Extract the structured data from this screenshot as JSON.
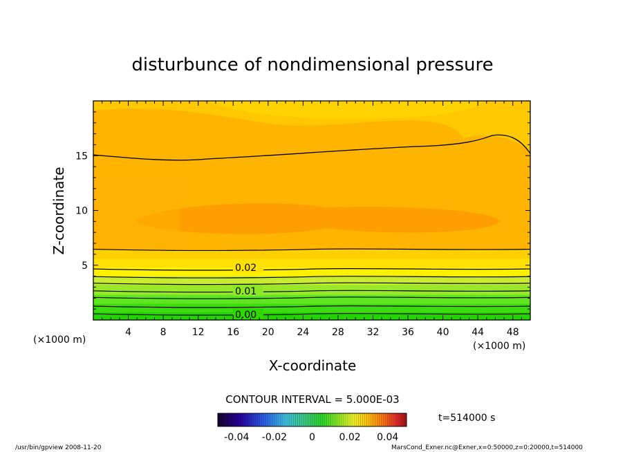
{
  "chart_data": {
    "type": "heatmap",
    "title": "disturbunce of nondimensional pressure",
    "xlabel": "X-coordinate",
    "ylabel": "Z-coordinate",
    "x_unit": "(×1000 m)",
    "y_unit": "(×1000 m)",
    "xlim": [
      0,
      50
    ],
    "ylim": [
      0,
      20
    ],
    "x_ticks": [
      4,
      8,
      12,
      16,
      20,
      24,
      28,
      32,
      36,
      40,
      44,
      48
    ],
    "y_ticks": [
      5,
      10,
      15
    ],
    "contour_interval_label": "CONTOUR INTERVAL = 5.000E-03",
    "contour_labels": [
      "0.02",
      "0.01",
      "0.00"
    ],
    "colorbar": {
      "range": [
        -0.05,
        0.05
      ],
      "ticks": [
        "-0.04",
        "-0.02",
        "0",
        "0.02",
        "0.04"
      ]
    },
    "fill_bands": [
      {
        "z_bottom": 0,
        "z_top": 0.7,
        "color": "#22d400"
      },
      {
        "z_bottom": 0.7,
        "z_top": 1.5,
        "color": "#3bdc10"
      },
      {
        "z_bottom": 1.5,
        "z_top": 2.3,
        "color": "#5ee620"
      },
      {
        "z_bottom": 2.3,
        "z_top": 3.2,
        "color": "#9ae82a"
      },
      {
        "z_bottom": 3.2,
        "z_top": 4.0,
        "color": "#c8ec30"
      },
      {
        "z_bottom": 4.0,
        "z_top": 4.8,
        "color": "#fff000"
      },
      {
        "z_bottom": 4.8,
        "z_top": 5.6,
        "color": "#ffe000"
      },
      {
        "z_bottom": 5.6,
        "z_top": 6.4,
        "color": "#ffd000"
      },
      {
        "z_bottom": 6.4,
        "z_top": 20,
        "color": "#ffb800"
      }
    ],
    "contour_lines_z": [
      0.5,
      1.2,
      2.0,
      2.6,
      3.3,
      3.9,
      4.6,
      6.4,
      14.6
    ]
  },
  "time_label": "t=514000 s",
  "footer_left": "/usr/bin/gpview  2008-11-20",
  "footer_right": "MarsCond_Exner.nc@Exner,x=0:50000,z=0:20000,t=514000"
}
